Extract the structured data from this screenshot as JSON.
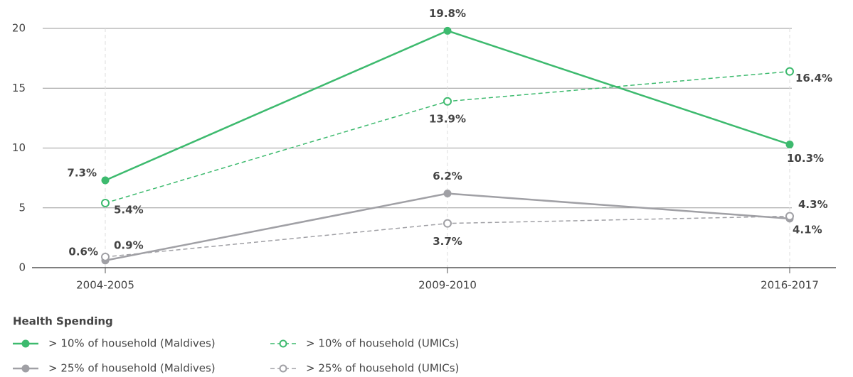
{
  "chart_data": {
    "type": "line",
    "categories": [
      "2004-2005",
      "2009-2010",
      "2016-2017"
    ],
    "series": [
      {
        "name": "> 10% of household (Maldives)",
        "color": "#3dba6e",
        "style": "solid",
        "marker": "filled",
        "values": [
          7.3,
          19.8,
          10.3
        ],
        "value_labels": [
          "7.3%",
          "19.8%",
          "10.3%"
        ]
      },
      {
        "name": "> 10% of household (UMICs)",
        "color": "#3dba6e",
        "style": "dashed",
        "marker": "open",
        "values": [
          5.4,
          13.9,
          16.4
        ],
        "value_labels": [
          "5.4%",
          "13.9%",
          "16.4%"
        ]
      },
      {
        "name": "> 25% of household (Maldives)",
        "color": "#a0a0a5",
        "style": "solid",
        "marker": "filled",
        "values": [
          0.6,
          6.2,
          4.1
        ],
        "value_labels": [
          "0.6%",
          "6.2%",
          "4.1%"
        ]
      },
      {
        "name": "> 25% of household (UMICs)",
        "color": "#a0a0a5",
        "style": "dashed",
        "marker": "open",
        "values": [
          0.9,
          3.7,
          4.3
        ],
        "value_labels": [
          "0.9%",
          "3.7%",
          "4.3%"
        ]
      }
    ],
    "ylim": [
      0,
      20
    ],
    "yticks": [
      0,
      5,
      10,
      15,
      20
    ],
    "grid": true,
    "legend_title": "Health Spending",
    "legend": "bottom-left"
  }
}
